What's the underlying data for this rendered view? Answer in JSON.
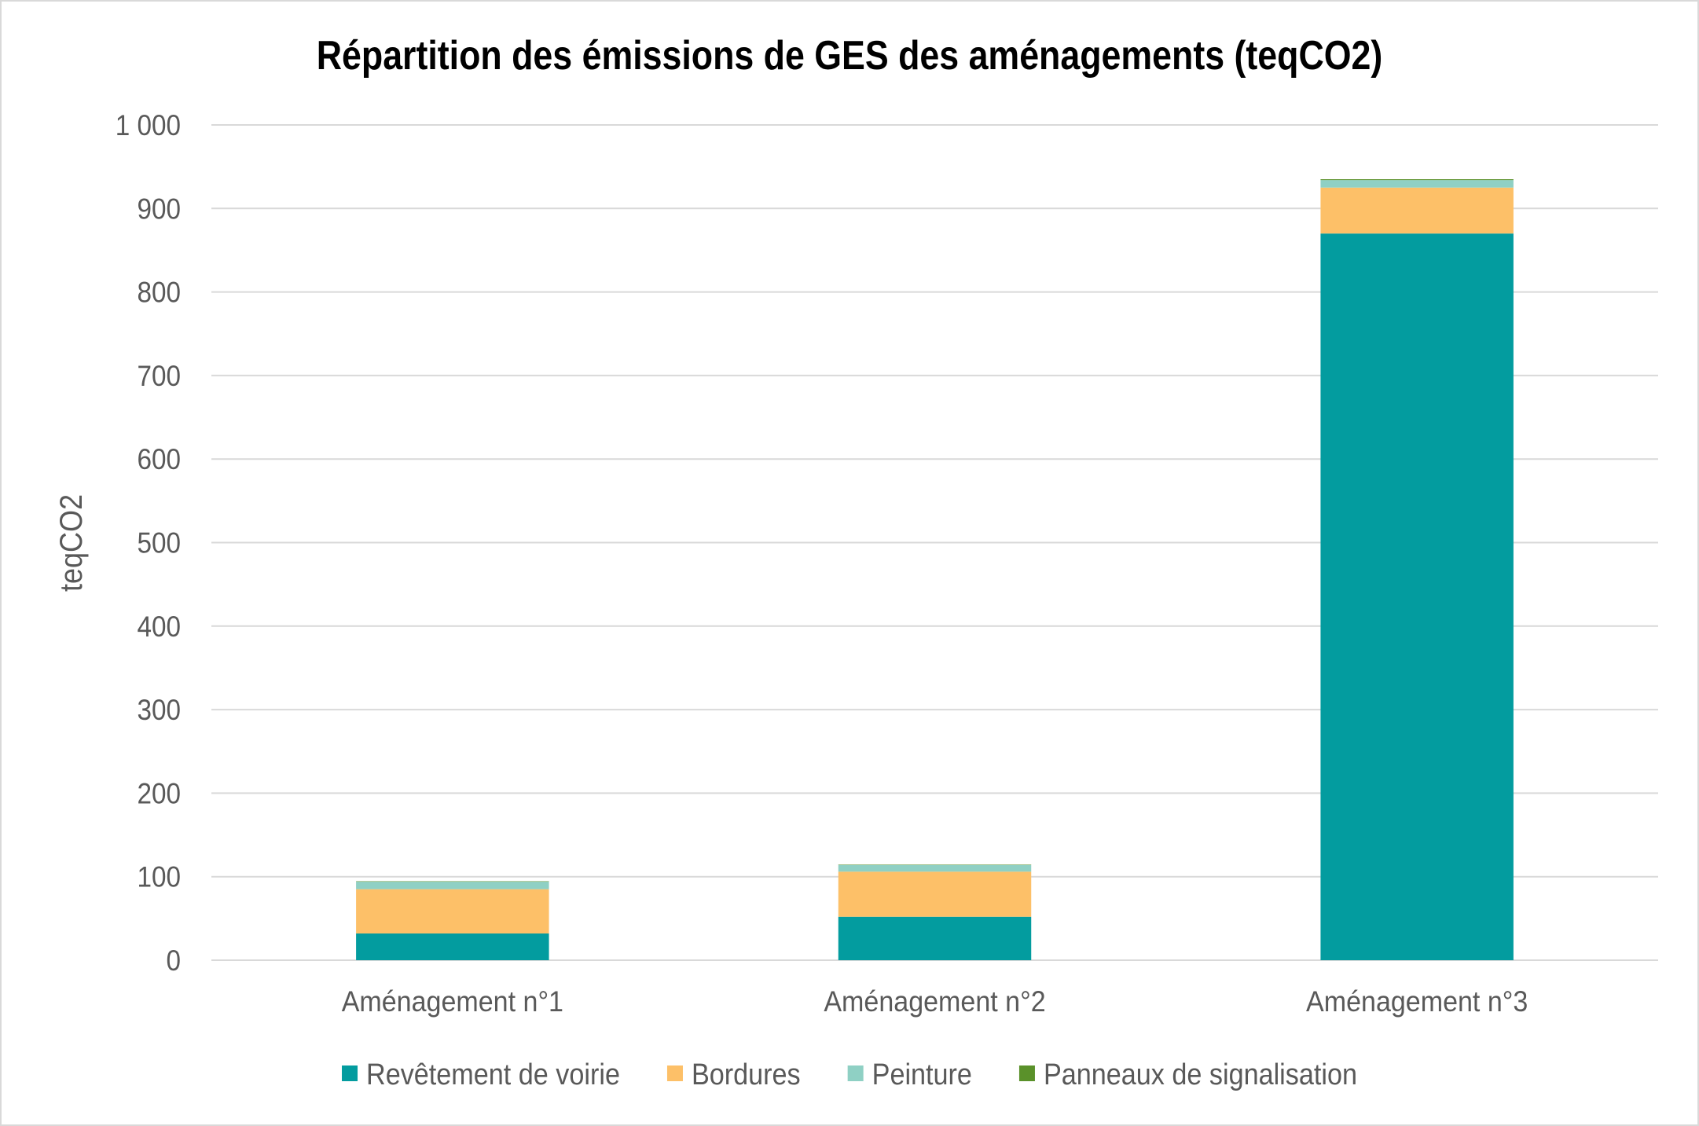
{
  "chart_data": {
    "type": "bar",
    "stacked": true,
    "title": "Répartition des émissions de GES des aménagements (teqCO2)",
    "ylabel": "teqCO2",
    "ylim": [
      0,
      1000
    ],
    "yticks": [
      0,
      100,
      200,
      300,
      400,
      500,
      600,
      700,
      800,
      900,
      1000
    ],
    "ytick_labels": [
      "0",
      "100",
      "200",
      "300",
      "400",
      "500",
      "600",
      "700",
      "800",
      "900",
      "1 000"
    ],
    "categories": [
      "Aménagement n°1",
      "Aménagement n°2",
      "Aménagement n°3"
    ],
    "series": [
      {
        "name": "Revêtement de voirie",
        "color": "#039C9F",
        "values": [
          32,
          52,
          870
        ]
      },
      {
        "name": "Bordures",
        "color": "#FDC068",
        "values": [
          53,
          54,
          55
        ]
      },
      {
        "name": "Peinture",
        "color": "#8FD0C4",
        "values": [
          9,
          8,
          9
        ]
      },
      {
        "name": "Panneaux de signalisation",
        "color": "#5A912A",
        "values": [
          0.5,
          0.5,
          1
        ]
      }
    ],
    "grid": true,
    "legend": "bottom"
  }
}
